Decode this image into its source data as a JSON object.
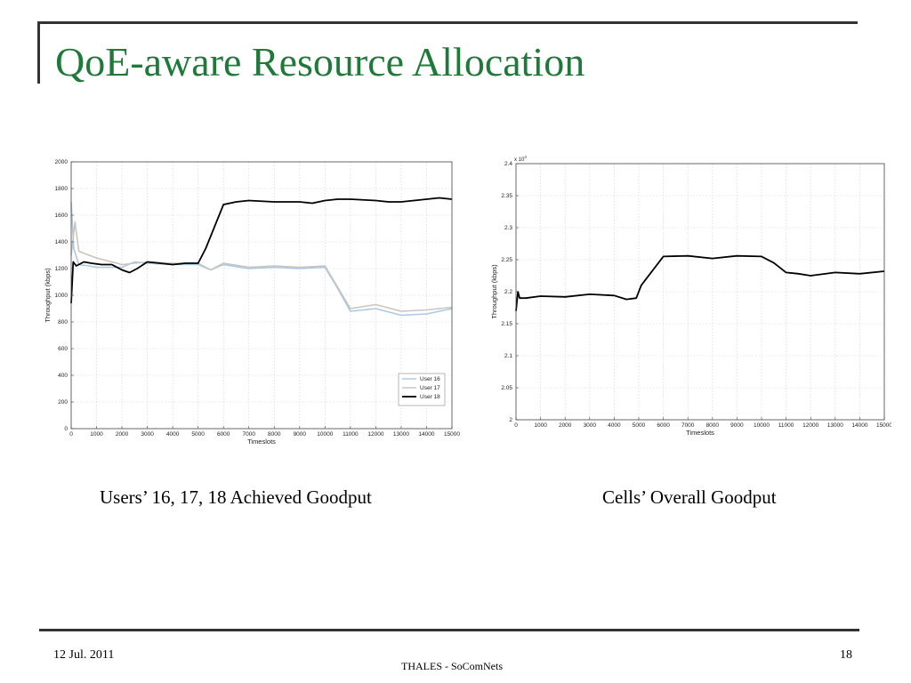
{
  "slide": {
    "title": "QoE-aware Resource Allocation",
    "caption_left": "Users’ 16, 17, 18 Achieved Goodput",
    "caption_right": "Cells’ Overall  Goodput",
    "footer_date": "12 Jul. 2011",
    "footer_center": "THALES - SoComNets",
    "page_number": "18",
    "title_color": "#1f7a3a"
  },
  "chart_data": [
    {
      "type": "line",
      "xlabel": "Timeslots",
      "ylabel": "Throughput (kbps)",
      "xlim": [
        0,
        15000
      ],
      "ylim": [
        0,
        2000
      ],
      "xticks": [
        0,
        1000,
        2000,
        3000,
        4000,
        5000,
        6000,
        7000,
        8000,
        9000,
        10000,
        11000,
        12000,
        13000,
        14000,
        15000
      ],
      "yticks": [
        0,
        200,
        400,
        600,
        800,
        1000,
        1200,
        1400,
        1600,
        1800,
        2000
      ],
      "grid": true,
      "legend_position": "bottom-right",
      "series": [
        {
          "name": "User 16",
          "color": "#a9c8e8",
          "x": [
            0,
            100,
            300,
            700,
            1000,
            2000,
            2500,
            3000,
            4000,
            5000,
            5500,
            6000,
            7000,
            8000,
            9000,
            10000,
            10500,
            11000,
            12000,
            13000,
            14000,
            15000
          ],
          "y": [
            1700,
            1350,
            1230,
            1220,
            1210,
            1210,
            1250,
            1240,
            1230,
            1230,
            1190,
            1230,
            1200,
            1210,
            1200,
            1210,
            1050,
            880,
            900,
            850,
            860,
            900
          ]
        },
        {
          "name": "User 17",
          "color": "#c9c5be",
          "x": [
            0,
            150,
            300,
            700,
            1000,
            2000,
            3000,
            4000,
            5000,
            5500,
            6000,
            7000,
            8000,
            9000,
            10000,
            10500,
            11000,
            12000,
            13000,
            14000,
            15000
          ],
          "y": [
            1300,
            1550,
            1330,
            1300,
            1280,
            1230,
            1250,
            1240,
            1240,
            1190,
            1240,
            1210,
            1220,
            1210,
            1220,
            1060,
            900,
            930,
            880,
            890,
            910
          ]
        },
        {
          "name": "User 18",
          "color": "#000000",
          "x": [
            0,
            80,
            200,
            500,
            800,
            1200,
            1600,
            2000,
            2300,
            2600,
            3000,
            3500,
            4000,
            4500,
            5000,
            5300,
            6000,
            6500,
            7000,
            8000,
            9000,
            9500,
            10000,
            10500,
            11000,
            12000,
            12500,
            13000,
            14000,
            14500,
            15000
          ],
          "y": [
            940,
            1250,
            1220,
            1250,
            1240,
            1230,
            1230,
            1190,
            1170,
            1200,
            1250,
            1240,
            1230,
            1240,
            1240,
            1350,
            1680,
            1700,
            1710,
            1700,
            1700,
            1690,
            1710,
            1720,
            1720,
            1710,
            1700,
            1700,
            1720,
            1730,
            1720
          ]
        }
      ]
    },
    {
      "type": "line",
      "xlabel": "Timeslots",
      "ylabel": "Throughput (kbps)",
      "y_multiplier": "x 10^4",
      "xlim": [
        0,
        15000
      ],
      "ylim": [
        2,
        2.4
      ],
      "xticks": [
        0,
        1000,
        2000,
        3000,
        4000,
        5000,
        6000,
        7000,
        8000,
        9000,
        10000,
        11000,
        12000,
        13000,
        14000,
        15000
      ],
      "yticks": [
        2,
        2.05,
        2.1,
        2.15,
        2.2,
        2.25,
        2.3,
        2.35,
        2.4
      ],
      "grid": true,
      "series": [
        {
          "color": "#000000",
          "x": [
            0,
            80,
            150,
            400,
            1000,
            2000,
            3000,
            4000,
            4500,
            4900,
            5100,
            6000,
            7000,
            8000,
            9000,
            10000,
            10500,
            11000,
            11500,
            12000,
            13000,
            14000,
            15000
          ],
          "y": [
            2.17,
            2.2,
            2.19,
            2.19,
            2.193,
            2.192,
            2.196,
            2.194,
            2.188,
            2.19,
            2.21,
            2.255,
            2.256,
            2.252,
            2.256,
            2.255,
            2.245,
            2.23,
            2.228,
            2.225,
            2.23,
            2.228,
            2.232
          ]
        }
      ]
    }
  ]
}
